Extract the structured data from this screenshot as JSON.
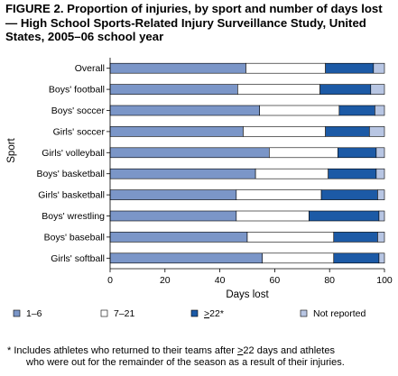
{
  "figure": {
    "title": "FIGURE 2. Proportion of injuries, by sport and number of days lost — High School Sports-Related Injury Surveillance Study, United States, 2005–06 school year",
    "footnote": {
      "marker": "*",
      "line1_before": " Includes athletes who returned to their teams after ",
      "line1_symbol": ">",
      "line1_after": "22 days and athletes",
      "line2": "who were out for the remainder of the season as a result of their injuries."
    }
  },
  "chart_data": {
    "type": "bar",
    "orientation": "horizontal",
    "stacked": true,
    "xlabel": "Days lost",
    "ylabel": "Sport",
    "xlim": [
      0,
      100
    ],
    "xticks": [
      "0",
      "20",
      "40",
      "60",
      "80",
      "100"
    ],
    "grid": false,
    "legend_position": "bottom",
    "categories": [
      "Overall",
      "Boys' football",
      "Boys' soccer",
      "Girls' soccer",
      "Girls' volleyball",
      "Boys' basketball",
      "Girls' basketball",
      "Boys' wrestling",
      "Boys' baseball",
      "Girls' softball"
    ],
    "series": [
      {
        "name": "1–6",
        "color": "#7b96c8",
        "values": [
          49.5,
          46.5,
          54.5,
          48.5,
          58.0,
          53.0,
          46.0,
          46.0,
          50.0,
          55.5
        ]
      },
      {
        "name": "7–21",
        "color": "#ffffff",
        "values": [
          29.0,
          30.0,
          29.0,
          30.0,
          25.0,
          26.5,
          31.0,
          26.5,
          31.5,
          26.0
        ]
      },
      {
        "name": "≥22*",
        "color": "#1c5aa6",
        "values": [
          17.5,
          18.5,
          13.0,
          16.0,
          14.0,
          17.5,
          20.5,
          25.5,
          16.0,
          16.5
        ]
      },
      {
        "name": "Not reported",
        "color": "#b8c6e3",
        "values": [
          4.0,
          5.0,
          3.5,
          5.5,
          3.0,
          3.0,
          2.5,
          2.0,
          2.5,
          2.0
        ]
      }
    ]
  }
}
